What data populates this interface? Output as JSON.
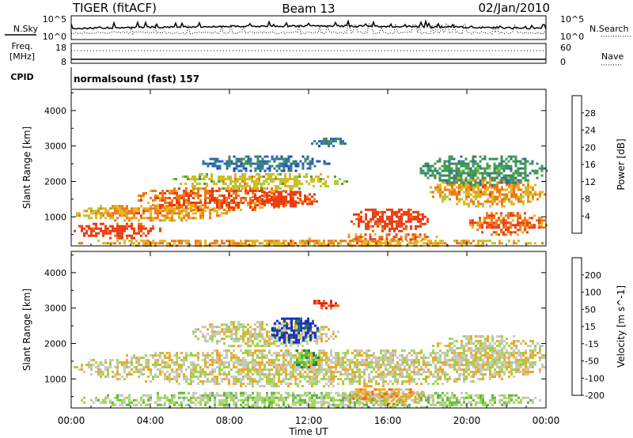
{
  "header": {
    "radar": "TIGER (fitACF)",
    "beam": "Beam 13",
    "date": "02/Jan/2010"
  },
  "nsky_panel": {
    "left_label": "N.Sky",
    "right_label": "N.Search",
    "left_ticks": [
      "10^5",
      "10^0"
    ],
    "right_ticks": [
      "10^5",
      "10^0"
    ]
  },
  "freq_panel": {
    "left_label_line1": "Freq.",
    "left_label_line2": "[MHz]",
    "left_ticks": [
      "18",
      "8"
    ],
    "right_ticks": [
      "60",
      "0"
    ],
    "right_label": "Nave"
  },
  "cpid_panel": {
    "label": "CPID",
    "text": "normalsound (fast) 157"
  },
  "chart_data": [
    {
      "type": "heatmap",
      "title": "",
      "xlabel": "Time UT",
      "ylabel": "Slant Range [km]",
      "x_ticks": [
        "00:00",
        "04:00",
        "08:00",
        "12:00",
        "16:00",
        "20:00",
        "00:00"
      ],
      "xlim_hours": [
        0,
        24
      ],
      "ylim": [
        180,
        4600
      ],
      "y_ticks": [
        1000,
        2000,
        3000,
        4000
      ],
      "colorbar": {
        "label": "Power [dB]",
        "ticks": [
          "4",
          "8",
          "12",
          "16",
          "20",
          "24",
          "28"
        ],
        "colors": [
          "#1f3fd4",
          "#2a6ab3",
          "#3b8a5c",
          "#3fa24a",
          "#a8cc3a",
          "#e8b21c",
          "#f07814",
          "#ec3a10"
        ]
      },
      "regions": [
        {
          "t0": 0.0,
          "t1": 4.5,
          "r0": 400,
          "r1": 900,
          "level": 7
        },
        {
          "t0": 0.0,
          "t1": 8.0,
          "r0": 900,
          "r1": 1400,
          "level": 5
        },
        {
          "t0": 3.0,
          "t1": 12.0,
          "r0": 1200,
          "r1": 1900,
          "level": 6
        },
        {
          "t0": 9.0,
          "t1": 12.5,
          "r0": 1300,
          "r1": 1800,
          "level": 7
        },
        {
          "t0": 5.0,
          "t1": 14.0,
          "r0": 1800,
          "r1": 2300,
          "level": 4
        },
        {
          "t0": 6.5,
          "t1": 13.0,
          "r0": 2300,
          "r1": 2800,
          "level": 1
        },
        {
          "t0": 12.0,
          "t1": 14.0,
          "r0": 3000,
          "r1": 3300,
          "level": 1
        },
        {
          "t0": 14.0,
          "t1": 18.0,
          "r0": 600,
          "r1": 1300,
          "level": 7
        },
        {
          "t0": 13.5,
          "t1": 18.5,
          "r0": 300,
          "r1": 600,
          "level": 6
        },
        {
          "t0": 18.0,
          "t1": 24.0,
          "r0": 1300,
          "r1": 2200,
          "level": 5
        },
        {
          "t0": 20.0,
          "t1": 24.0,
          "r0": 500,
          "r1": 1200,
          "level": 6
        },
        {
          "t0": 17.5,
          "t1": 24.0,
          "r0": 1900,
          "r1": 2800,
          "level": 2
        },
        {
          "t0": 0.0,
          "t1": 24.0,
          "r0": 180,
          "r1": 420,
          "level": 5
        }
      ]
    },
    {
      "type": "heatmap",
      "title": "",
      "xlabel": "Time UT",
      "ylabel": "Slant Range [km]",
      "x_ticks": [
        "00:00",
        "04:00",
        "08:00",
        "12:00",
        "16:00",
        "20:00",
        "00:00"
      ],
      "xlim_hours": [
        0,
        24
      ],
      "ylim": [
        180,
        4600
      ],
      "y_ticks": [
        1000,
        2000,
        3000,
        4000
      ],
      "colorbar": {
        "label": "Velocity [m s^-1]",
        "ticks": [
          "200",
          "100",
          "50",
          "15",
          "-15",
          "-50",
          "-100",
          "-200"
        ],
        "colors": [
          "#1a2fc4",
          "#2a7a4a",
          "#5ab83a",
          "#9ad84a",
          "#c8c8c0",
          "#f0a820",
          "#f06a18",
          "#e82010"
        ]
      },
      "regions": [
        {
          "t0": 0.0,
          "t1": 24.0,
          "r0": 800,
          "r1": 1900,
          "level": 4
        },
        {
          "t0": 6.0,
          "t1": 13.5,
          "r0": 1900,
          "r1": 2700,
          "level": 4
        },
        {
          "t0": 10.0,
          "t1": 12.5,
          "r0": 2000,
          "r1": 2800,
          "level": 0
        },
        {
          "t0": 11.0,
          "t1": 12.5,
          "r0": 1300,
          "r1": 1900,
          "level": 2
        },
        {
          "t0": 12.0,
          "t1": 13.5,
          "r0": 3000,
          "r1": 3300,
          "level": 7
        },
        {
          "t0": 0.0,
          "t1": 24.0,
          "r0": 180,
          "r1": 700,
          "level": 3
        },
        {
          "t0": 13.5,
          "t1": 18.0,
          "r0": 300,
          "r1": 800,
          "level": 5
        },
        {
          "t0": 18.0,
          "t1": 24.0,
          "r0": 1200,
          "r1": 2300,
          "level": 4
        }
      ]
    }
  ]
}
